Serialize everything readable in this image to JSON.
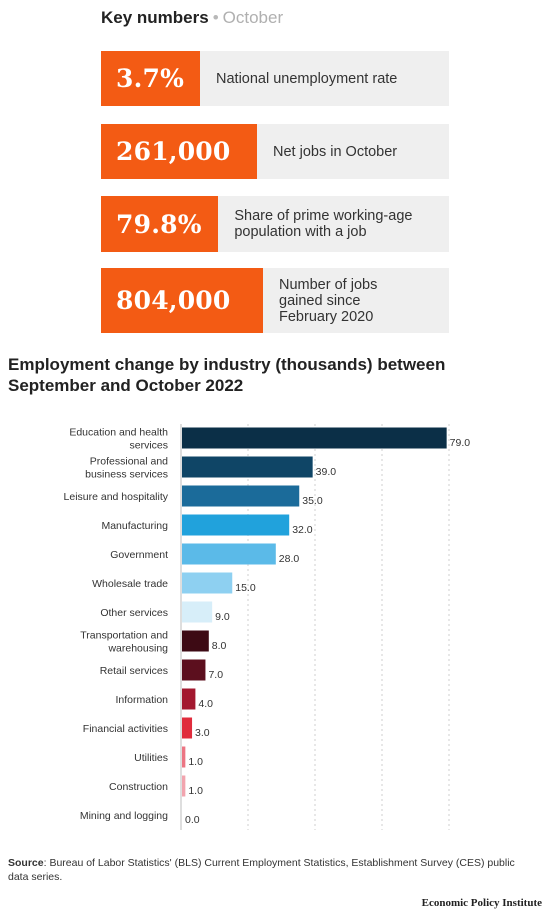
{
  "key_numbers": {
    "title": "Key numbers",
    "separator": "•",
    "month": "October",
    "stats": [
      {
        "value": "3.7%",
        "label": "National unemployment rate"
      },
      {
        "value": "261,000",
        "label": "Net jobs in October"
      },
      {
        "value": "79.8%",
        "label": "Share of prime working-age population with a job"
      },
      {
        "value": "804,000",
        "label": "Number of jobs gained since February 2020"
      }
    ]
  },
  "chart_data": {
    "type": "bar",
    "orientation": "horizontal",
    "title": "Employment change by industry (thousands) between September and October 2022",
    "grid": true,
    "xlim": [
      0,
      90
    ],
    "categories": [
      "Education and health services",
      "Professional and business services",
      "Leisure and hospitality",
      "Manufacturing",
      "Government",
      "Wholesale trade",
      "Other services",
      "Transportation and warehousing",
      "Retail services",
      "Information",
      "Financial activities",
      "Utilities",
      "Construction",
      "Mining and logging"
    ],
    "values": [
      79.0,
      39.0,
      35.0,
      32.0,
      28.0,
      15.0,
      9.0,
      8.0,
      7.0,
      4.0,
      3.0,
      1.0,
      1.0,
      0.0
    ],
    "value_labels": [
      "79.0",
      "39.0",
      "35.0",
      "32.0",
      "28.0",
      "15.0",
      "9.0",
      "8.0",
      "7.0",
      "4.0",
      "3.0",
      "1.0",
      "1.0",
      "0.0"
    ],
    "colors": [
      "#0b2f47",
      "#0f4566",
      "#1b6b9a",
      "#21a2dc",
      "#5bbae8",
      "#8ed0f1",
      "#d7eef9",
      "#3d0a14",
      "#5c0f1e",
      "#a3182f",
      "#e02c3c",
      "#ec7583",
      "#f2a4ae",
      "#f7d0d5"
    ]
  },
  "source": {
    "label": "Source",
    "text": ": Bureau of Labor Statistics' (BLS) Current Employment Statistics, Establishment Survey (CES) public data series."
  },
  "brand": "Economic Policy Institute"
}
